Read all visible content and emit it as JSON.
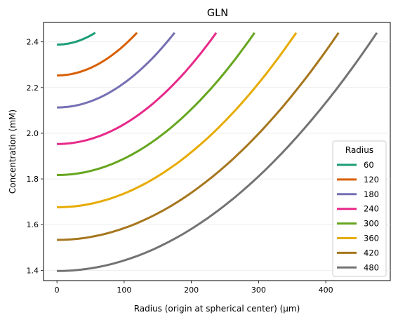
{
  "chart_data": {
    "type": "line",
    "title": "GLN",
    "xlabel": "Radius (origin at spherical center) (μm)",
    "ylabel": "Concentration (mM)",
    "xlim": [
      -20,
      496
    ],
    "ylim": [
      1.355,
      2.485
    ],
    "xticks": [
      0,
      100,
      200,
      300,
      400
    ],
    "yticks": [
      1.4,
      1.6,
      1.8,
      2.0,
      2.2,
      2.4
    ],
    "grid": "horizontal, faint",
    "legend": {
      "title": "Radius",
      "placement": "lower right"
    },
    "series": [
      {
        "name": "60",
        "color": "#1b9e77",
        "outer_radius": 57,
        "center_value": 2.388,
        "edge_value": 2.44,
        "x": [
          0,
          14,
          28,
          42,
          57
        ],
        "y": [
          2.388,
          2.391,
          2.401,
          2.416,
          2.44
        ]
      },
      {
        "name": "120",
        "color": "#d95f02",
        "outer_radius": 119,
        "center_value": 2.253,
        "edge_value": 2.44,
        "x": [
          0,
          30,
          60,
          90,
          119
        ],
        "y": [
          2.253,
          2.265,
          2.3,
          2.357,
          2.44
        ]
      },
      {
        "name": "180",
        "color": "#7570b3",
        "outer_radius": 175,
        "center_value": 2.113,
        "edge_value": 2.44,
        "x": [
          0,
          44,
          88,
          131,
          175
        ],
        "y": [
          2.113,
          2.133,
          2.195,
          2.297,
          2.44
        ]
      },
      {
        "name": "240",
        "color": "#e7298a",
        "outer_radius": 237,
        "center_value": 1.953,
        "edge_value": 2.44,
        "x": [
          0,
          59,
          119,
          178,
          237
        ],
        "y": [
          1.953,
          1.983,
          2.075,
          2.227,
          2.44
        ]
      },
      {
        "name": "300",
        "color": "#66a61e",
        "outer_radius": 294,
        "center_value": 1.817,
        "edge_value": 2.44,
        "x": [
          0,
          74,
          147,
          221,
          294
        ],
        "y": [
          1.817,
          1.856,
          1.973,
          2.168,
          2.44
        ]
      },
      {
        "name": "360",
        "color": "#e6ab02",
        "outer_radius": 356,
        "center_value": 1.676,
        "edge_value": 2.44,
        "x": [
          0,
          89,
          178,
          267,
          356
        ],
        "y": [
          1.676,
          1.724,
          1.867,
          2.106,
          2.44
        ]
      },
      {
        "name": "420",
        "color": "#a6761d",
        "outer_radius": 419,
        "center_value": 1.533,
        "edge_value": 2.44,
        "x": [
          0,
          105,
          210,
          314,
          419
        ],
        "y": [
          1.533,
          1.59,
          1.76,
          2.043,
          2.44
        ]
      },
      {
        "name": "480",
        "color": "#737373",
        "outer_radius": 476,
        "center_value": 1.397,
        "edge_value": 2.44,
        "x": [
          0,
          119,
          238,
          357,
          476
        ],
        "y": [
          1.397,
          1.462,
          1.658,
          1.984,
          2.44
        ]
      }
    ]
  }
}
